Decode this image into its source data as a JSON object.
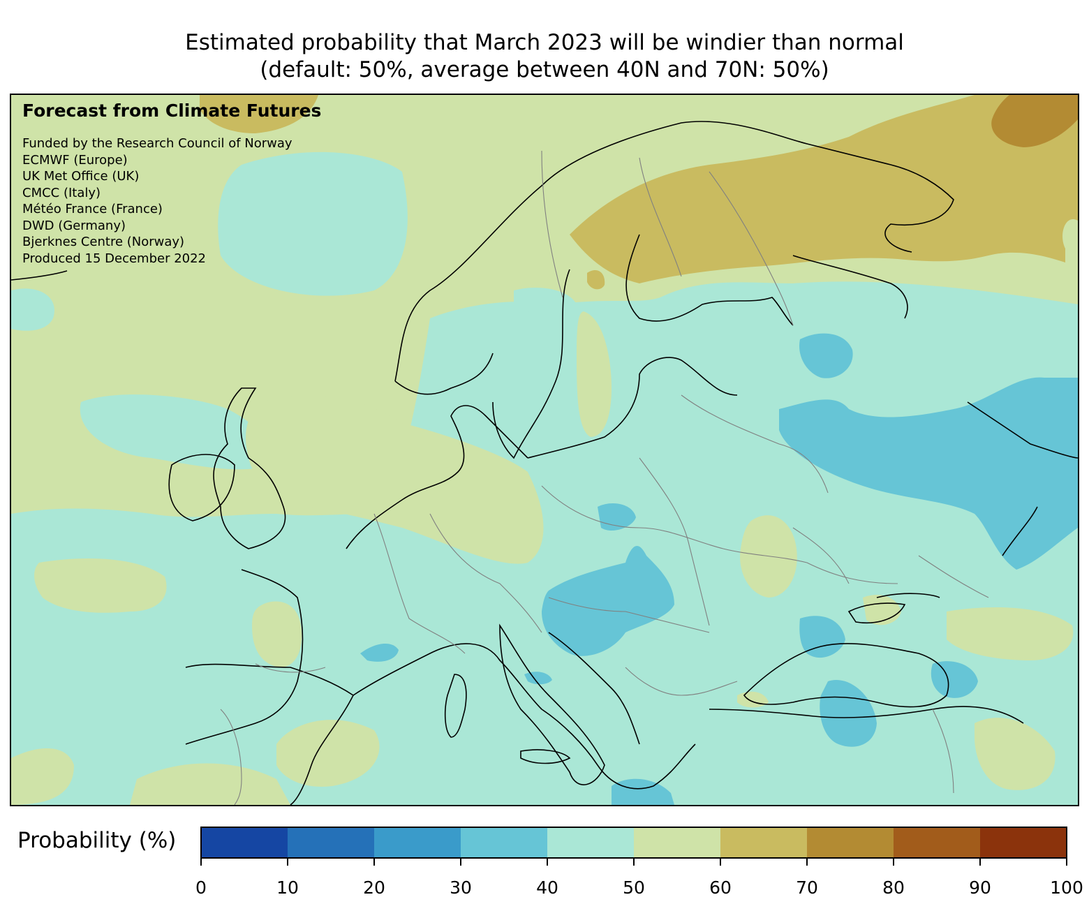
{
  "title": {
    "line1": "Estimated probability that March 2023 will be windier than normal",
    "line2": "(default: 50%, average between 40N and 70N: 50%)"
  },
  "map": {
    "brand": "Forecast from Climate Futures",
    "credits": [
      "Funded by the Research Council of Norway",
      "ECMWF (Europe)",
      "UK Met Office (UK)",
      "CMCC (Italy)",
      "Météo France (France)",
      "DWD (Germany)",
      "Bjerknes Centre (Norway)",
      "Produced 15 December 2022"
    ],
    "field_colors": {
      "30-40": "#66c5d6",
      "40-50": "#aae7d6",
      "50-60": "#cfe3a8",
      "60-70": "#c9bb60",
      "70-80": "#b38b33"
    },
    "coastline_color": "#000000",
    "border_color": "#808080"
  },
  "colorbar": {
    "label": "Probability (%)",
    "ticks": [
      "0",
      "10",
      "20",
      "30",
      "40",
      "50",
      "60",
      "70",
      "80",
      "90",
      "100"
    ],
    "colors": [
      "#1546a3",
      "#2571b8",
      "#3a9bca",
      "#66c5d6",
      "#aae7d6",
      "#cfe3a8",
      "#c9bb60",
      "#b38b33",
      "#a25c1b",
      "#8b330c"
    ]
  }
}
